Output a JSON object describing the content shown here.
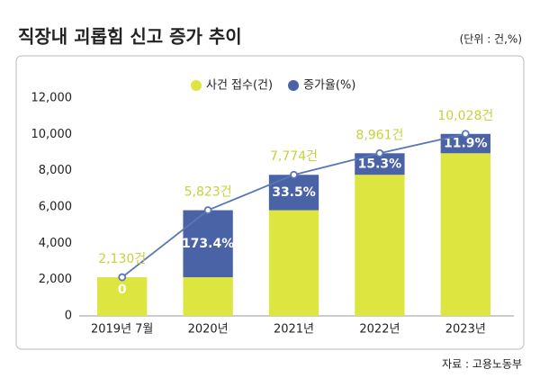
{
  "chart_data": {
    "type": "bar",
    "title": "직장내 괴롭힘 신고 증가 추이",
    "unit_note": "(단위 : 건,%)",
    "source": "자료 : 고용노동부",
    "categories": [
      "2019년 7월",
      "2020년",
      "2021년",
      "2022년",
      "2023년"
    ],
    "ylim": [
      0,
      12000
    ],
    "yticks": [
      0,
      {
        "value": 2000,
        "label": "2,000"
      },
      {
        "value": 4000,
        "label": "4,000"
      },
      {
        "value": 6000,
        "label": "6,000"
      },
      {
        "value": 8000,
        "label": "8,000"
      },
      {
        "value": 10000,
        "label": "10,000"
      },
      {
        "value": 12000,
        "label": "12,000"
      }
    ],
    "legend": "top",
    "series": [
      {
        "name": "사건 접수(건)",
        "color": "#dde641",
        "values": [
          2130,
          2130,
          5823,
          7774,
          8961
        ]
      },
      {
        "name": "증가율(%)",
        "color": "#4a63a7",
        "values": [
          0,
          3693,
          1951,
          1187,
          1067
        ],
        "rates": [
          0,
          173.4,
          33.5,
          15.3,
          11.9
        ],
        "rate_labels": [
          "0",
          "173.4%",
          "33.5%",
          "15.3%",
          "11.9%"
        ]
      },
      {
        "type": "line",
        "color": "#5a76b4",
        "values": [
          2130,
          5823,
          7774,
          8961,
          10028
        ],
        "value_labels": [
          "2,130건",
          "5,823건",
          "7,774건",
          "8,961건",
          "10,028건"
        ]
      }
    ]
  }
}
